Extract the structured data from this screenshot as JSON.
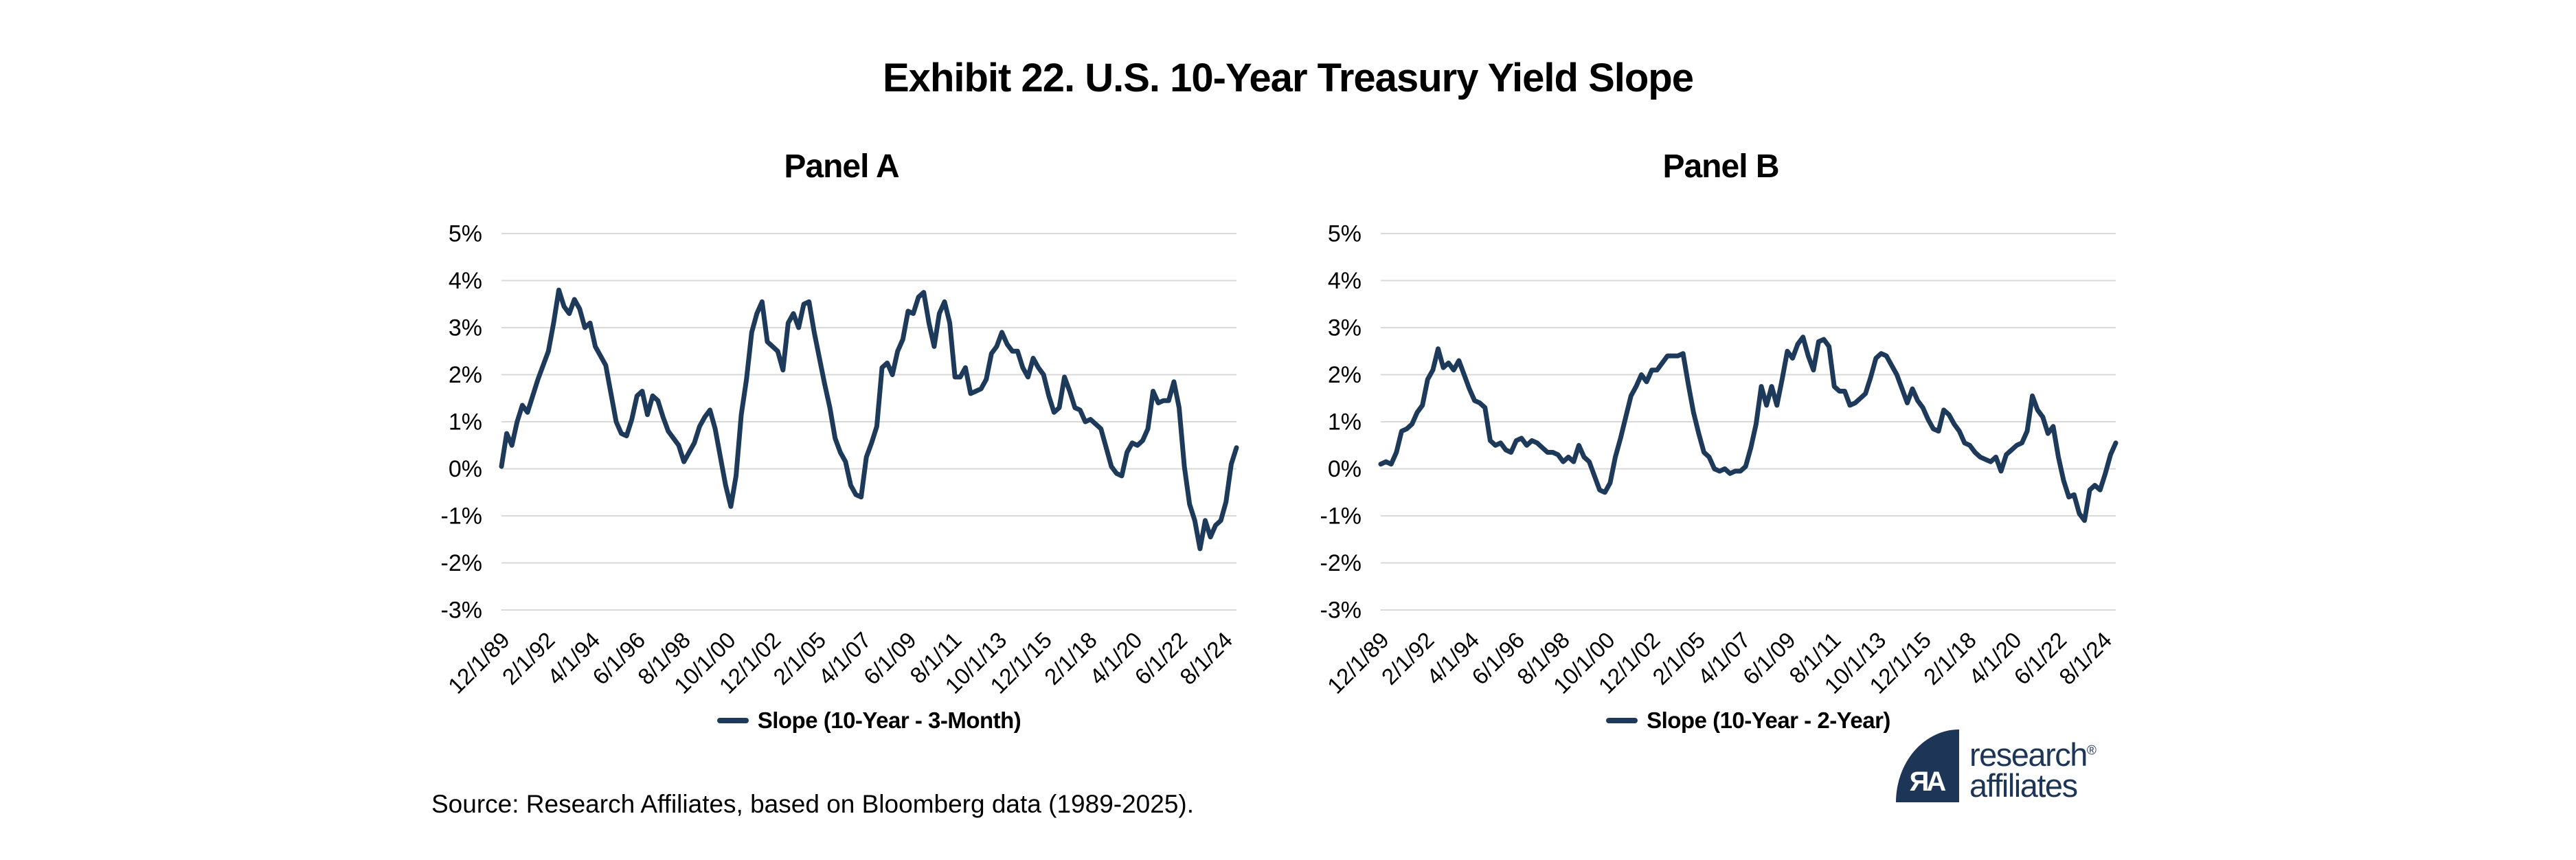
{
  "title": "Exhibit 22. U.S. 10-Year Treasury Yield Slope",
  "source": "Source: Research Affiliates, based on Bloomberg data (1989-2025).",
  "panels": [
    {
      "label": "Panel A",
      "legend_label": "Slope (10-Year - 3-Month)"
    },
    {
      "label": "Panel B",
      "legend_label": "Slope (10-Year - 2-Year)"
    }
  ],
  "logo": {
    "mark": "ЯA",
    "line1": "research",
    "registered": "®",
    "line2": "affiliates"
  },
  "colors": {
    "line": "#1e3a5a",
    "grid": "#d9d9d9",
    "text": "#000000",
    "logo_navy": "#1d3557"
  },
  "chart_data": [
    {
      "type": "line",
      "title": "Panel A",
      "xlabel": "",
      "ylabel": "",
      "grid": "horizontal",
      "legend_position": "bottom",
      "ylim": [
        -3,
        5
      ],
      "y_tick_values": [
        5,
        4,
        3,
        2,
        1,
        0,
        -1,
        -2,
        -3
      ],
      "y_tick_labels": [
        "5%",
        "4%",
        "3%",
        "2%",
        "1%",
        "0%",
        "-1%",
        "-2%",
        "-3%"
      ],
      "x_tick_labels": [
        "12/1/89",
        "2/1/92",
        "4/1/94",
        "6/1/96",
        "8/1/98",
        "10/1/00",
        "12/1/02",
        "2/1/05",
        "4/1/07",
        "6/1/09",
        "8/1/11",
        "10/1/13",
        "12/1/15",
        "2/1/18",
        "4/1/20",
        "6/1/22",
        "8/1/24"
      ],
      "x_tick_months": [
        0,
        26,
        52,
        78,
        104,
        130,
        156,
        182,
        208,
        234,
        260,
        286,
        312,
        338,
        364,
        390,
        416
      ],
      "total_months": 423,
      "series": [
        {
          "name": "Slope (10-Year - 3-Month)",
          "start_date": "12/1/1989",
          "interval_months": 3,
          "values": [
            0.05,
            0.75,
            0.5,
            1.0,
            1.35,
            1.2,
            1.55,
            1.9,
            2.2,
            2.5,
            3.1,
            3.8,
            3.45,
            3.3,
            3.6,
            3.4,
            3.0,
            3.1,
            2.6,
            2.4,
            2.2,
            1.6,
            1.0,
            0.75,
            0.7,
            1.05,
            1.55,
            1.65,
            1.15,
            1.55,
            1.45,
            1.1,
            0.8,
            0.65,
            0.5,
            0.15,
            0.35,
            0.55,
            0.9,
            1.1,
            1.25,
            0.85,
            0.25,
            -0.35,
            -0.8,
            -0.15,
            1.15,
            1.9,
            2.9,
            3.3,
            3.55,
            2.7,
            2.6,
            2.5,
            2.1,
            3.1,
            3.3,
            3.0,
            3.5,
            3.55,
            2.9,
            2.35,
            1.8,
            1.3,
            0.65,
            0.35,
            0.15,
            -0.35,
            -0.55,
            -0.6,
            0.25,
            0.55,
            0.9,
            2.15,
            2.25,
            2.0,
            2.5,
            2.75,
            3.35,
            3.3,
            3.65,
            3.75,
            3.1,
            2.6,
            3.3,
            3.55,
            3.1,
            1.95,
            1.95,
            2.15,
            1.6,
            1.65,
            1.7,
            1.9,
            2.45,
            2.6,
            2.9,
            2.65,
            2.5,
            2.5,
            2.15,
            1.95,
            2.35,
            2.15,
            2.0,
            1.55,
            1.2,
            1.3,
            1.95,
            1.65,
            1.3,
            1.25,
            1.0,
            1.05,
            0.95,
            0.85,
            0.45,
            0.05,
            -0.1,
            -0.15,
            0.35,
            0.55,
            0.5,
            0.6,
            0.85,
            1.65,
            1.4,
            1.45,
            1.45,
            1.85,
            1.3,
            0.05,
            -0.75,
            -1.1,
            -1.7,
            -1.1,
            -1.45,
            -1.2,
            -1.1,
            -0.7,
            0.1,
            0.45
          ]
        }
      ]
    },
    {
      "type": "line",
      "title": "Panel B",
      "xlabel": "",
      "ylabel": "",
      "grid": "horizontal",
      "legend_position": "bottom",
      "ylim": [
        -3,
        5
      ],
      "y_tick_values": [
        5,
        4,
        3,
        2,
        1,
        0,
        -1,
        -2,
        -3
      ],
      "y_tick_labels": [
        "5%",
        "4%",
        "3%",
        "2%",
        "1%",
        "0%",
        "-1%",
        "-2%",
        "-3%"
      ],
      "x_tick_labels": [
        "12/1/89",
        "2/1/92",
        "4/1/94",
        "6/1/96",
        "8/1/98",
        "10/1/00",
        "12/1/02",
        "2/1/05",
        "4/1/07",
        "6/1/09",
        "8/1/11",
        "10/1/13",
        "12/1/15",
        "2/1/18",
        "4/1/20",
        "6/1/22",
        "8/1/24"
      ],
      "x_tick_months": [
        0,
        26,
        52,
        78,
        104,
        130,
        156,
        182,
        208,
        234,
        260,
        286,
        312,
        338,
        364,
        390,
        416
      ],
      "total_months": 423,
      "series": [
        {
          "name": "Slope (10-Year - 2-Year)",
          "start_date": "12/1/1989",
          "interval_months": 3,
          "values": [
            0.1,
            0.15,
            0.1,
            0.35,
            0.8,
            0.85,
            0.95,
            1.2,
            1.35,
            1.9,
            2.1,
            2.55,
            2.15,
            2.25,
            2.1,
            2.3,
            2.0,
            1.7,
            1.45,
            1.4,
            1.3,
            0.6,
            0.5,
            0.55,
            0.4,
            0.35,
            0.6,
            0.65,
            0.5,
            0.6,
            0.55,
            0.45,
            0.35,
            0.35,
            0.3,
            0.15,
            0.25,
            0.15,
            0.5,
            0.25,
            0.15,
            -0.15,
            -0.45,
            -0.5,
            -0.3,
            0.25,
            0.65,
            1.1,
            1.55,
            1.75,
            2.0,
            1.85,
            2.1,
            2.1,
            2.25,
            2.4,
            2.4,
            2.4,
            2.45,
            1.8,
            1.2,
            0.75,
            0.35,
            0.25,
            0.0,
            -0.05,
            0.0,
            -0.1,
            -0.05,
            -0.05,
            0.05,
            0.45,
            0.95,
            1.75,
            1.35,
            1.75,
            1.35,
            1.9,
            2.5,
            2.35,
            2.65,
            2.8,
            2.4,
            2.1,
            2.7,
            2.75,
            2.6,
            1.75,
            1.65,
            1.65,
            1.35,
            1.4,
            1.5,
            1.6,
            1.95,
            2.35,
            2.45,
            2.4,
            2.2,
            2.0,
            1.7,
            1.4,
            1.7,
            1.45,
            1.3,
            1.05,
            0.85,
            0.8,
            1.25,
            1.15,
            0.95,
            0.8,
            0.55,
            0.5,
            0.35,
            0.25,
            0.2,
            0.15,
            0.25,
            -0.05,
            0.3,
            0.4,
            0.5,
            0.55,
            0.8,
            1.55,
            1.25,
            1.1,
            0.75,
            0.9,
            0.25,
            -0.25,
            -0.6,
            -0.55,
            -0.95,
            -1.1,
            -0.45,
            -0.35,
            -0.45,
            -0.1,
            0.3,
            0.55
          ]
        }
      ]
    }
  ]
}
